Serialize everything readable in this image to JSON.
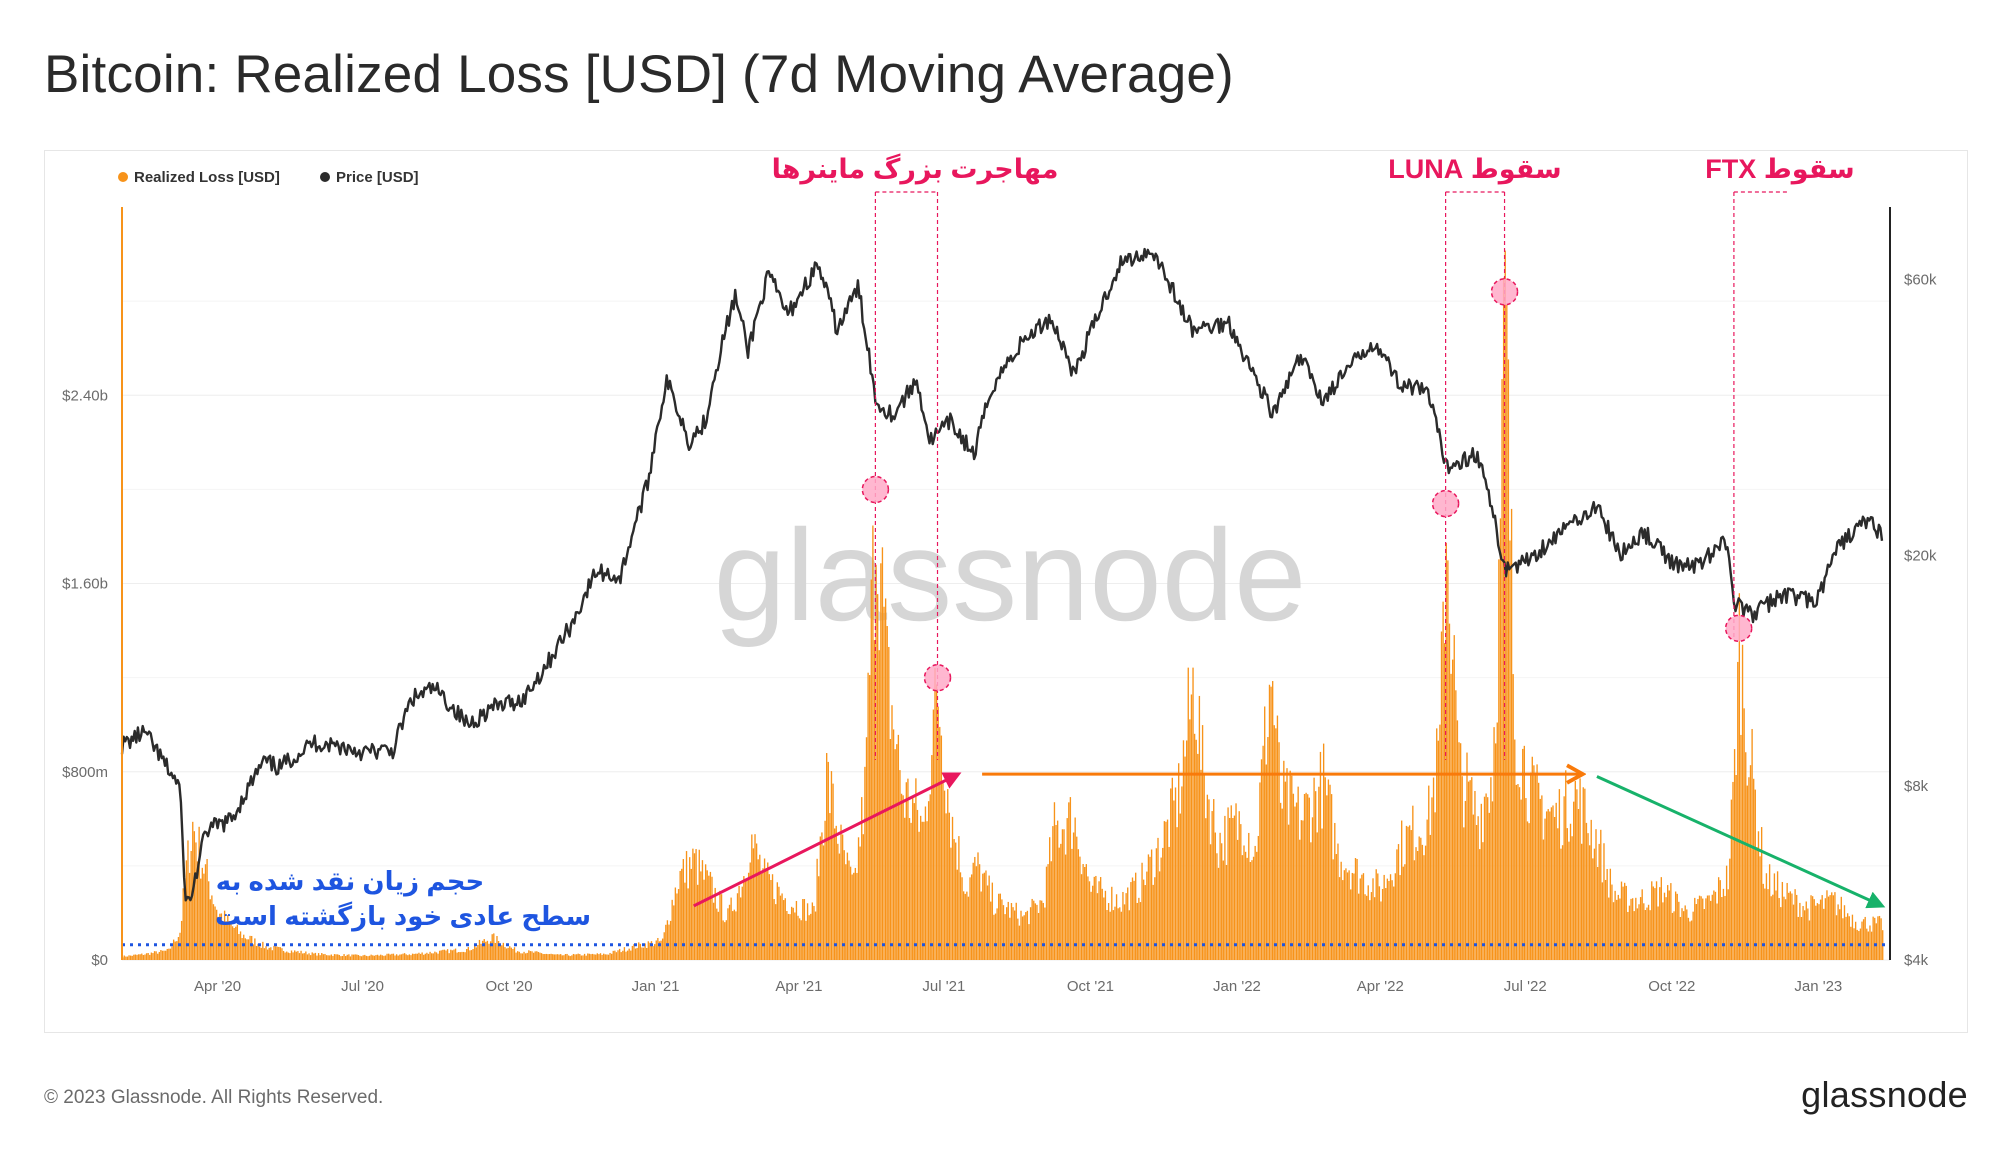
{
  "title": "Bitcoin: Realized Loss [USD] (7d Moving Average)",
  "footer": {
    "copyright": "© 2023 Glassnode. All Rights Reserved.",
    "logo": "glassnode"
  },
  "watermark": "glassnode",
  "colors": {
    "loss": "#f7931a",
    "price": "#2b2b2b",
    "annotation": "#e8175d",
    "arrow_orange": "#f97a0a",
    "arrow_green": "#17b26a",
    "baseline": "#1e55e0",
    "grid": "#eeeeee"
  },
  "chart_data": {
    "type": "bar+line",
    "title": "Bitcoin: Realized Loss [USD] (7d Moving Average)",
    "legend": [
      {
        "name": "Realized Loss [USD]",
        "color": "#f7931a"
      },
      {
        "name": "Price [USD]",
        "color": "#2b2b2b"
      }
    ],
    "legend_position": "top-left",
    "x_range": [
      "2020-02-01",
      "2023-02-15"
    ],
    "x_ticks": [
      {
        "label": "Apr '20",
        "date": "2020-04-01"
      },
      {
        "label": "Jul '20",
        "date": "2020-07-01"
      },
      {
        "label": "Oct '20",
        "date": "2020-10-01"
      },
      {
        "label": "Jan '21",
        "date": "2021-01-01"
      },
      {
        "label": "Apr '21",
        "date": "2021-04-01"
      },
      {
        "label": "Jul '21",
        "date": "2021-07-01"
      },
      {
        "label": "Oct '21",
        "date": "2021-10-01"
      },
      {
        "label": "Jan '22",
        "date": "2022-01-01"
      },
      {
        "label": "Apr '22",
        "date": "2022-04-01"
      },
      {
        "label": "Jul '22",
        "date": "2022-07-01"
      },
      {
        "label": "Oct '22",
        "date": "2022-10-01"
      },
      {
        "label": "Jan '23",
        "date": "2023-01-01"
      }
    ],
    "y_left": {
      "label": "Realized Loss [USD]",
      "min": 0,
      "max": 3200000000,
      "ticks": [
        {
          "label": "$0",
          "value": 0
        },
        {
          "label": "$800m",
          "value": 800000000
        },
        {
          "label": "$1.60b",
          "value": 1600000000
        },
        {
          "label": "$2.40b",
          "value": 2400000000
        }
      ]
    },
    "y_right": {
      "label": "Price [USD]",
      "scale": "log",
      "min": 4000,
      "max": 80000,
      "ticks": [
        {
          "label": "$4k",
          "value": 4000
        },
        {
          "label": "$8k",
          "value": 8000
        },
        {
          "label": "$20k",
          "value": 20000
        },
        {
          "label": "$60k",
          "value": 60000
        }
      ]
    },
    "realized_loss_series": [
      [
        "2020-02-01",
        15000000
      ],
      [
        "2020-02-15",
        25000000
      ],
      [
        "2020-03-01",
        40000000
      ],
      [
        "2020-03-08",
        120000000
      ],
      [
        "2020-03-12",
        380000000
      ],
      [
        "2020-03-16",
        570000000
      ],
      [
        "2020-03-22",
        420000000
      ],
      [
        "2020-04-01",
        200000000
      ],
      [
        "2020-04-15",
        110000000
      ],
      [
        "2020-05-01",
        55000000
      ],
      [
        "2020-05-15",
        40000000
      ],
      [
        "2020-06-01",
        25000000
      ],
      [
        "2020-07-01",
        18000000
      ],
      [
        "2020-08-01",
        25000000
      ],
      [
        "2020-09-05",
        45000000
      ],
      [
        "2020-09-20",
        95000000
      ],
      [
        "2020-10-05",
        40000000
      ],
      [
        "2020-11-01",
        20000000
      ],
      [
        "2020-12-01",
        25000000
      ],
      [
        "2020-12-20",
        60000000
      ],
      [
        "2021-01-05",
        80000000
      ],
      [
        "2021-01-15",
        350000000
      ],
      [
        "2021-01-25",
        420000000
      ],
      [
        "2021-02-05",
        300000000
      ],
      [
        "2021-02-15",
        180000000
      ],
      [
        "2021-02-25",
        360000000
      ],
      [
        "2021-03-01",
        520000000
      ],
      [
        "2021-03-10",
        350000000
      ],
      [
        "2021-03-25",
        250000000
      ],
      [
        "2021-04-10",
        200000000
      ],
      [
        "2021-04-18",
        780000000
      ],
      [
        "2021-04-28",
        450000000
      ],
      [
        "2021-05-05",
        300000000
      ],
      [
        "2021-05-12",
        700000000
      ],
      [
        "2021-05-19",
        1940000000
      ],
      [
        "2021-05-26",
        1200000000
      ],
      [
        "2021-06-05",
        700000000
      ],
      [
        "2021-06-12",
        650000000
      ],
      [
        "2021-06-18",
        550000000
      ],
      [
        "2021-06-23",
        950000000
      ],
      [
        "2021-06-27",
        1140000000
      ],
      [
        "2021-07-05",
        600000000
      ],
      [
        "2021-07-15",
        300000000
      ],
      [
        "2021-07-21",
        400000000
      ],
      [
        "2021-08-01",
        250000000
      ],
      [
        "2021-08-20",
        180000000
      ],
      [
        "2021-09-01",
        250000000
      ],
      [
        "2021-09-08",
        550000000
      ],
      [
        "2021-09-20",
        600000000
      ],
      [
        "2021-10-01",
        300000000
      ],
      [
        "2021-10-20",
        250000000
      ],
      [
        "2021-11-01",
        320000000
      ],
      [
        "2021-11-15",
        500000000
      ],
      [
        "2021-11-25",
        700000000
      ],
      [
        "2021-12-05",
        1200000000
      ],
      [
        "2021-12-10",
        800000000
      ],
      [
        "2021-12-20",
        500000000
      ],
      [
        "2022-01-05",
        600000000
      ],
      [
        "2022-01-12",
        450000000
      ],
      [
        "2022-01-22",
        1220000000
      ],
      [
        "2022-01-28",
        700000000
      ],
      [
        "2022-02-10",
        600000000
      ],
      [
        "2022-02-24",
        750000000
      ],
      [
        "2022-03-05",
        450000000
      ],
      [
        "2022-03-20",
        350000000
      ],
      [
        "2022-04-01",
        300000000
      ],
      [
        "2022-04-15",
        500000000
      ],
      [
        "2022-05-01",
        600000000
      ],
      [
        "2022-05-08",
        900000000
      ],
      [
        "2022-05-12",
        1880000000
      ],
      [
        "2022-05-20",
        800000000
      ],
      [
        "2022-06-01",
        600000000
      ],
      [
        "2022-06-10",
        800000000
      ],
      [
        "2022-06-14",
        1500000000
      ],
      [
        "2022-06-18",
        2780000000
      ],
      [
        "2022-06-24",
        1000000000
      ],
      [
        "2022-07-05",
        700000000
      ],
      [
        "2022-07-20",
        600000000
      ],
      [
        "2022-08-01",
        700000000
      ],
      [
        "2022-08-15",
        500000000
      ],
      [
        "2022-08-25",
        280000000
      ],
      [
        "2022-09-10",
        250000000
      ],
      [
        "2022-09-25",
        300000000
      ],
      [
        "2022-10-10",
        200000000
      ],
      [
        "2022-10-25",
        250000000
      ],
      [
        "2022-11-05",
        350000000
      ],
      [
        "2022-11-09",
        800000000
      ],
      [
        "2022-11-12",
        1350000000
      ],
      [
        "2022-11-18",
        900000000
      ],
      [
        "2022-11-28",
        350000000
      ],
      [
        "2022-12-10",
        280000000
      ],
      [
        "2022-12-25",
        220000000
      ],
      [
        "2023-01-10",
        250000000
      ],
      [
        "2023-01-25",
        160000000
      ],
      [
        "2023-02-10",
        150000000
      ]
    ],
    "price_series": [
      [
        "2020-02-01",
        9400
      ],
      [
        "2020-02-15",
        9900
      ],
      [
        "2020-02-28",
        8700
      ],
      [
        "2020-03-08",
        8000
      ],
      [
        "2020-03-12",
        5000
      ],
      [
        "2020-03-16",
        5200
      ],
      [
        "2020-03-25",
        6700
      ],
      [
        "2020-04-10",
        7000
      ],
      [
        "2020-04-30",
        8800
      ],
      [
        "2020-05-10",
        8600
      ],
      [
        "2020-05-31",
        9500
      ],
      [
        "2020-06-15",
        9400
      ],
      [
        "2020-07-01",
        9150
      ],
      [
        "2020-07-20",
        9200
      ],
      [
        "2020-08-01",
        11300
      ],
      [
        "2020-08-15",
        11800
      ],
      [
        "2020-09-05",
        10200
      ],
      [
        "2020-09-20",
        10900
      ],
      [
        "2020-10-10",
        11300
      ],
      [
        "2020-10-25",
        13000
      ],
      [
        "2020-11-10",
        15300
      ],
      [
        "2020-11-25",
        18800
      ],
      [
        "2020-12-10",
        18300
      ],
      [
        "2020-12-27",
        26500
      ],
      [
        "2021-01-08",
        40000
      ],
      [
        "2021-01-22",
        31500
      ],
      [
        "2021-02-01",
        34000
      ],
      [
        "2021-02-20",
        56000
      ],
      [
        "2021-02-28",
        45000
      ],
      [
        "2021-03-13",
        61000
      ],
      [
        "2021-03-25",
        52000
      ],
      [
        "2021-04-13",
        63500
      ],
      [
        "2021-04-25",
        49000
      ],
      [
        "2021-05-08",
        58000
      ],
      [
        "2021-05-19",
        37000
      ],
      [
        "2021-05-30",
        35000
      ],
      [
        "2021-06-14",
        40000
      ],
      [
        "2021-06-22",
        31500
      ],
      [
        "2021-07-05",
        34000
      ],
      [
        "2021-07-20",
        29800
      ],
      [
        "2021-08-01",
        39500
      ],
      [
        "2021-08-20",
        47000
      ],
      [
        "2021-09-06",
        51500
      ],
      [
        "2021-09-21",
        41000
      ],
      [
        "2021-10-05",
        51500
      ],
      [
        "2021-10-20",
        64000
      ],
      [
        "2021-11-09",
        67500
      ],
      [
        "2021-11-26",
        54000
      ],
      [
        "2021-12-04",
        49000
      ],
      [
        "2021-12-27",
        50500
      ],
      [
        "2022-01-10",
        41800
      ],
      [
        "2022-01-24",
        35000
      ],
      [
        "2022-02-10",
        44000
      ],
      [
        "2022-02-24",
        37000
      ],
      [
        "2022-03-28",
        47000
      ],
      [
        "2022-04-12",
        40000
      ],
      [
        "2022-05-01",
        38000
      ],
      [
        "2022-05-12",
        28500
      ],
      [
        "2022-06-01",
        30000
      ],
      [
        "2022-06-13",
        22000
      ],
      [
        "2022-06-18",
        19000
      ],
      [
        "2022-07-01",
        19500
      ],
      [
        "2022-07-15",
        21000
      ],
      [
        "2022-08-14",
        24400
      ],
      [
        "2022-08-30",
        20000
      ],
      [
        "2022-09-13",
        22000
      ],
      [
        "2022-09-30",
        19500
      ],
      [
        "2022-10-15",
        19100
      ],
      [
        "2022-11-05",
        21300
      ],
      [
        "2022-11-09",
        16500
      ],
      [
        "2022-11-21",
        15800
      ],
      [
        "2022-12-10",
        17200
      ],
      [
        "2022-12-31",
        16600
      ],
      [
        "2023-01-14",
        20800
      ],
      [
        "2023-01-31",
        23000
      ],
      [
        "2023-02-10",
        21800
      ]
    ],
    "annotations": [
      {
        "label": "مهاجرت بزرگ ماینرها",
        "lines": [
          "2021-05-19",
          "2021-06-27"
        ]
      },
      {
        "label": "سقوط LUNA",
        "lines": [
          "2022-05-12",
          "2022-06-18"
        ]
      },
      {
        "label": "سقوط FTX",
        "lines": [
          "2022-11-09"
        ]
      }
    ],
    "highlighted_points": [
      {
        "date": "2021-05-19",
        "value": 1940000000
      },
      {
        "date": "2021-06-27",
        "value": 1140000000
      },
      {
        "date": "2022-05-12",
        "value": 1880000000
      },
      {
        "date": "2022-06-18",
        "value": 2780000000
      },
      {
        "date": "2022-11-12",
        "value": 1350000000
      }
    ],
    "baseline": {
      "value": 65000000,
      "label": "حجم زیان نقد شده به سطح عادی خود بازگشته است"
    },
    "baseline_note_lines": [
      "حجم زیان نقد شده به",
      "سطح عادی خود بازگشته است"
    ],
    "trend_arrows": [
      {
        "color": "#e8175d",
        "from": [
          "2021-01-25",
          230000000
        ],
        "to": [
          "2021-07-10",
          790000000
        ]
      },
      {
        "color": "#f97a0a",
        "from": [
          "2021-07-25",
          790000000
        ],
        "to": [
          "2022-08-05",
          790000000
        ]
      },
      {
        "color": "#17b26a",
        "from": [
          "2022-08-15",
          780000000
        ],
        "to": [
          "2023-02-10",
          230000000
        ]
      }
    ]
  }
}
